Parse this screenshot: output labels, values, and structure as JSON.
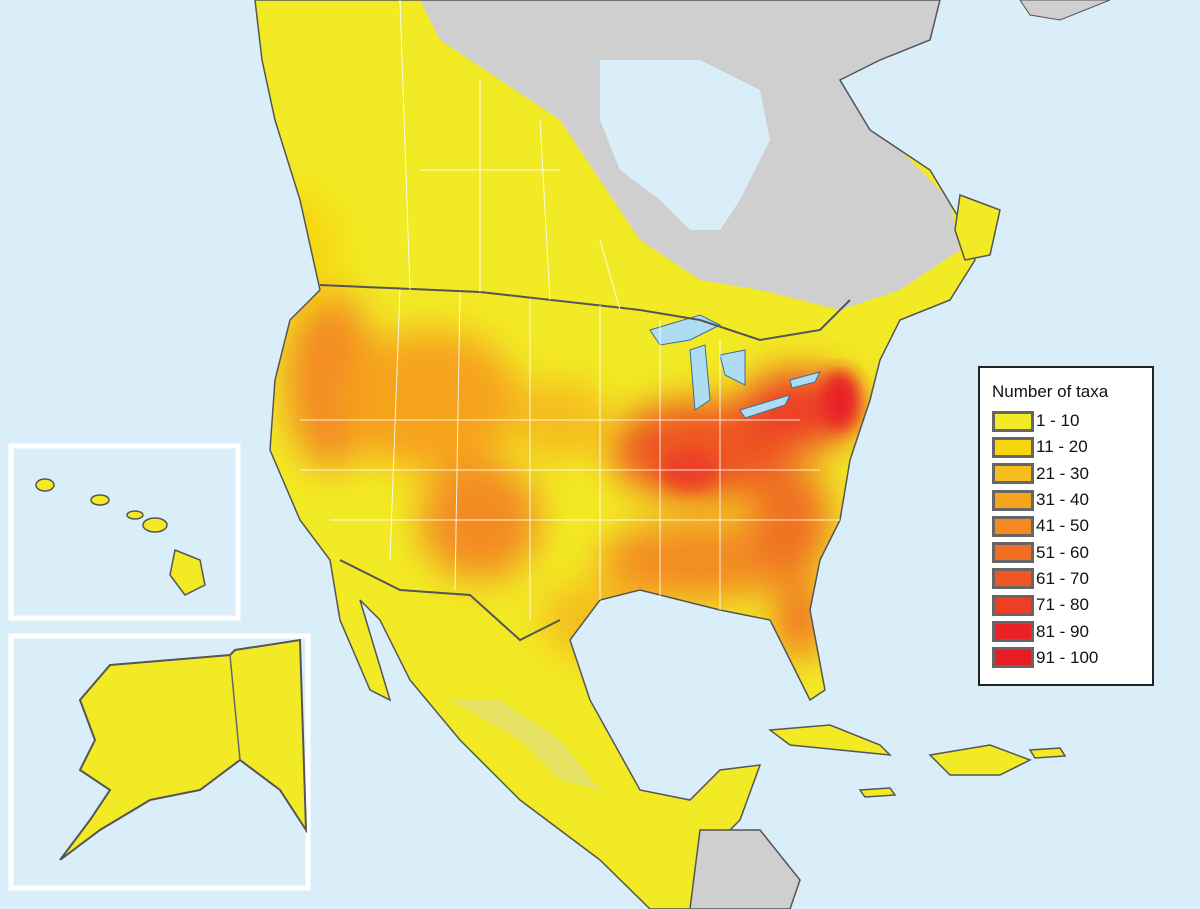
{
  "legend": {
    "title": "Number of taxa",
    "classes": [
      {
        "label": "1 - 10",
        "color": "#f2ea25"
      },
      {
        "label": "11 - 20",
        "color": "#f7d60f"
      },
      {
        "label": "21 - 30",
        "color": "#f5bd1e"
      },
      {
        "label": "31 - 40",
        "color": "#f6a31e"
      },
      {
        "label": "41 - 50",
        "color": "#f38b22"
      },
      {
        "label": "51 - 60",
        "color": "#f06f23"
      },
      {
        "label": "61 - 70",
        "color": "#ee5624"
      },
      {
        "label": "71 - 80",
        "color": "#ec3f25"
      },
      {
        "label": "81 - 90",
        "color": "#ea2226"
      },
      {
        "label": "91 - 100",
        "color": "#e91c24"
      }
    ]
  },
  "colors": {
    "ocean": "#d9eef9",
    "no_data": "#cfcfcf",
    "boundary": "#555555",
    "inset_frame": "#ffffff"
  },
  "insets": [
    "hawaii",
    "alaska"
  ]
}
